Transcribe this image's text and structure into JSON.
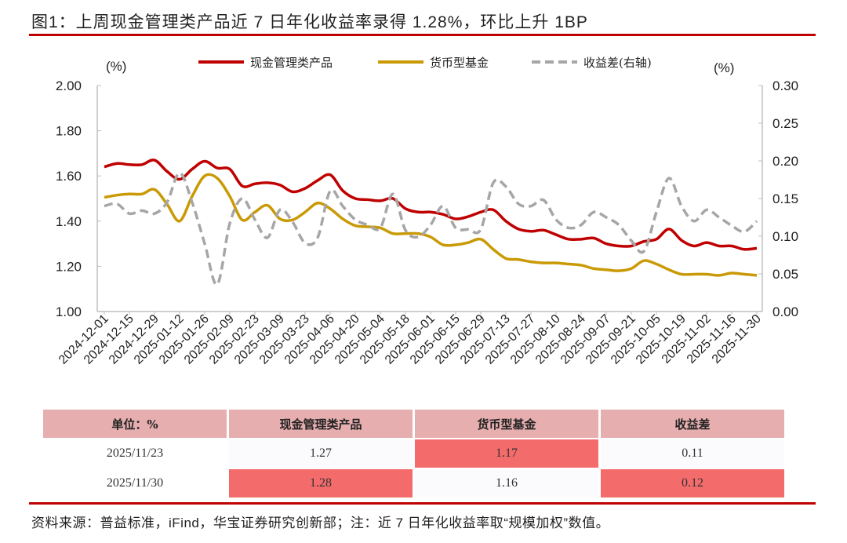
{
  "title": "图1：上周现金管理类产品近 7 日年化收益率录得 1.28%，环比上升 1BP",
  "chart_data": {
    "type": "line",
    "left_unit": "(%)",
    "right_unit": "(%)",
    "ylim_left": [
      1.0,
      2.0
    ],
    "ylim_right": [
      0.0,
      0.3
    ],
    "yticks_left": [
      "1.00",
      "1.20",
      "1.40",
      "1.60",
      "1.80",
      "2.00"
    ],
    "yticks_right": [
      "0.00",
      "0.05",
      "0.10",
      "0.15",
      "0.20",
      "0.25",
      "0.30"
    ],
    "x_tick_labels": [
      "2024-12-01",
      "2024-12-15",
      "2024-12-29",
      "2025-01-12",
      "2025-01-26",
      "2025-02-09",
      "2025-02-23",
      "2025-03-09",
      "2025-03-23",
      "2025-04-06",
      "2025-04-20",
      "2025-05-04",
      "2025-05-18",
      "2025-06-01",
      "2025-06-15",
      "2025-06-29",
      "2025-07-13",
      "2025-07-27",
      "2025-08-10",
      "2025-08-24",
      "2025-09-07",
      "2025-09-21",
      "2025-10-05",
      "2025-10-19",
      "2025-11-02",
      "2025-11-16",
      "2025-11-30"
    ],
    "x_frequency": "weekly",
    "legend_position": "top",
    "grid": false,
    "series": [
      {
        "name": "现金管理类产品",
        "axis": "left",
        "color": "#c00000",
        "style": "solid",
        "values": [
          1.64,
          1.655,
          1.65,
          1.65,
          1.67,
          1.62,
          1.585,
          1.63,
          1.665,
          1.635,
          1.63,
          1.555,
          1.565,
          1.57,
          1.56,
          1.53,
          1.545,
          1.58,
          1.605,
          1.535,
          1.5,
          1.495,
          1.49,
          1.5,
          1.455,
          1.44,
          1.44,
          1.43,
          1.41,
          1.42,
          1.44,
          1.45,
          1.4,
          1.365,
          1.355,
          1.36,
          1.34,
          1.32,
          1.32,
          1.325,
          1.3,
          1.29,
          1.29,
          1.31,
          1.32,
          1.365,
          1.315,
          1.29,
          1.305,
          1.29,
          1.29,
          1.275,
          1.28
        ]
      },
      {
        "name": "货币型基金",
        "axis": "left",
        "color": "#c99a06",
        "style": "solid",
        "values": [
          1.505,
          1.515,
          1.52,
          1.52,
          1.54,
          1.475,
          1.4,
          1.51,
          1.6,
          1.59,
          1.51,
          1.405,
          1.44,
          1.47,
          1.41,
          1.405,
          1.44,
          1.48,
          1.455,
          1.41,
          1.38,
          1.375,
          1.37,
          1.345,
          1.345,
          1.345,
          1.33,
          1.295,
          1.295,
          1.305,
          1.32,
          1.275,
          1.235,
          1.23,
          1.22,
          1.215,
          1.215,
          1.21,
          1.205,
          1.19,
          1.185,
          1.18,
          1.19,
          1.225,
          1.21,
          1.185,
          1.165,
          1.165,
          1.165,
          1.16,
          1.17,
          1.165,
          1.16
        ]
      },
      {
        "name": "收益差(右轴)",
        "axis": "right",
        "color": "#a6a6a6",
        "style": "dashed",
        "values": [
          0.14,
          0.143,
          0.13,
          0.134,
          0.13,
          0.145,
          0.184,
          0.145,
          0.09,
          0.036,
          0.117,
          0.15,
          0.122,
          0.098,
          0.135,
          0.119,
          0.091,
          0.098,
          0.16,
          0.14,
          0.122,
          0.115,
          0.111,
          0.156,
          0.108,
          0.099,
          0.115,
          0.14,
          0.111,
          0.109,
          0.109,
          0.171,
          0.166,
          0.143,
          0.14,
          0.148,
          0.122,
          0.111,
          0.115,
          0.132,
          0.125,
          0.115,
          0.094,
          0.08,
          0.132,
          0.177,
          0.14,
          0.12,
          0.135,
          0.125,
          0.114,
          0.106,
          0.12
        ]
      }
    ]
  },
  "table": {
    "headers": [
      "单位：%",
      "现金管理类产品",
      "货币型基金",
      "收益差"
    ],
    "rows": [
      {
        "date": "2025/11/23",
        "cash": "1.27",
        "money": "1.17",
        "spread": "0.11"
      },
      {
        "date": "2025/11/30",
        "cash": "1.28",
        "money": "1.16",
        "spread": "0.12"
      }
    ],
    "highlight_color": "#f46b6b",
    "header_color": "#e6aeaf"
  },
  "footer": "资料来源：普益标准，iFind，华宝证券研究创新部；注：近 7 日年化收益率取“规模加权”数值。"
}
